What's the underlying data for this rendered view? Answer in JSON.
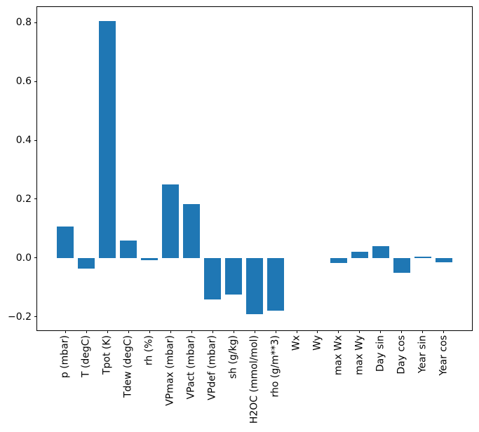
{
  "chart_data": {
    "type": "bar",
    "title": "",
    "xlabel": "",
    "ylabel": "",
    "categories": [
      "p (mbar)",
      "T (degC)",
      "Tpot (K)",
      "Tdew (degC)",
      "rh (%)",
      "VPmax (mbar)",
      "VPact (mbar)",
      "VPdef (mbar)",
      "sh (g/kg)",
      "H2OC (mmol/mol)",
      "rho (g/m**3)",
      "Wx",
      "Wy",
      "max Wx",
      "max Wy",
      "Day sin",
      "Day cos",
      "Year sin",
      "Year cos"
    ],
    "values": [
      0.108,
      -0.037,
      0.805,
      0.059,
      -0.008,
      0.251,
      0.183,
      -0.141,
      -0.124,
      -0.192,
      -0.18,
      0.0,
      0.0,
      -0.018,
      0.021,
      0.04,
      -0.051,
      0.004,
      -0.015
    ],
    "ylim": [
      -0.246,
      0.853
    ],
    "xlim": [
      -1.34,
      19.34
    ],
    "bar_width": 0.8,
    "yticks": {
      "values": [
        0.8,
        0.6,
        0.4,
        0.2,
        0.0,
        -0.2
      ],
      "labels": [
        "0.8",
        "0.6",
        "0.4",
        "0.2",
        "0.0",
        "−0.2"
      ]
    },
    "grid": false,
    "legend": false,
    "colors": {
      "bar": "#1f77b4",
      "spine": "#000000",
      "tick_label": "#000000",
      "background": "#ffffff"
    }
  }
}
